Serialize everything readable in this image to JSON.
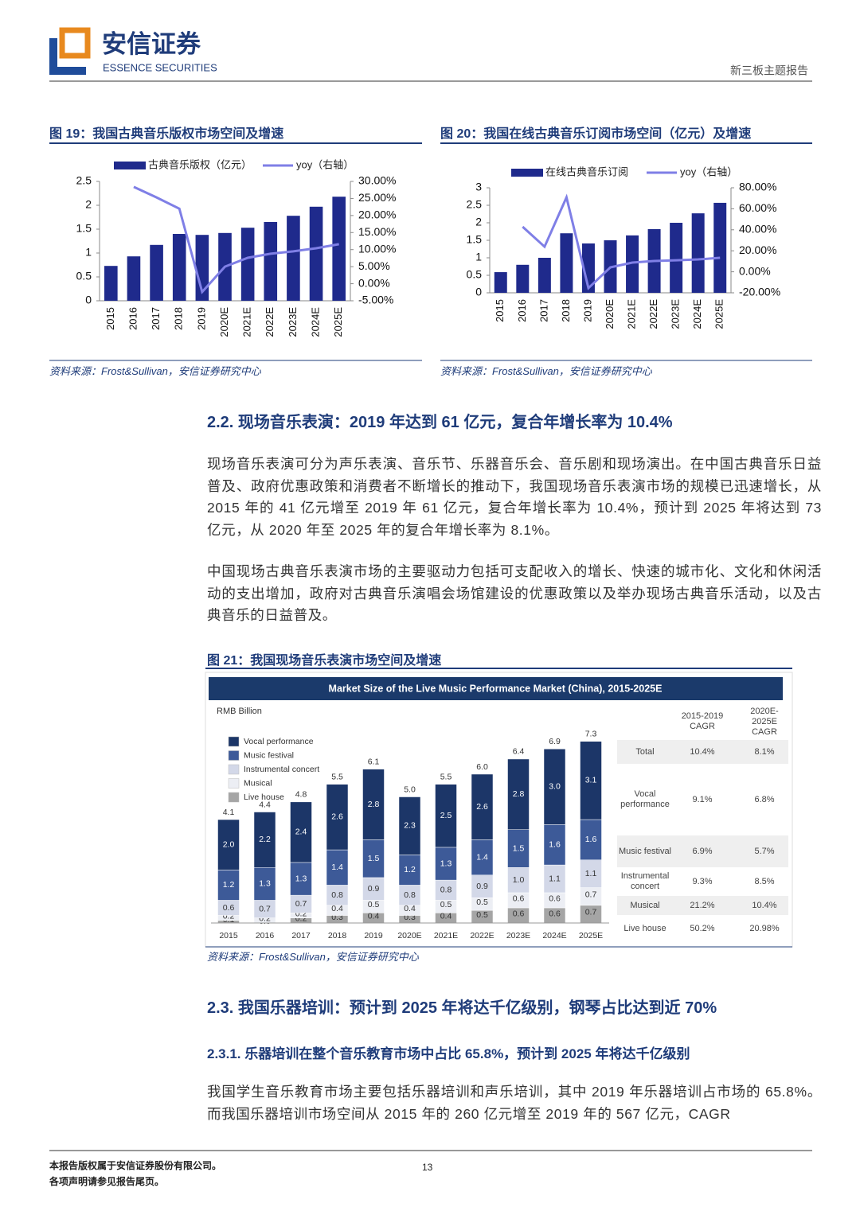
{
  "header": {
    "logo_cn": "安信证券",
    "logo_en": "ESSENCE SECURITIES",
    "report_type": "新三板主题报告"
  },
  "chart_data": [
    {
      "type": "bar-line",
      "caption": "图 19：我国古典音乐版权市场空间及增速",
      "categories": [
        "2015",
        "2016",
        "2017",
        "2018",
        "2019",
        "2020E",
        "2021E",
        "2022E",
        "2023E",
        "2024E",
        "2025E"
      ],
      "series": [
        {
          "name": "古典音乐版权（亿元）",
          "type": "bar",
          "color": "#1f2a8c",
          "values": [
            0.73,
            0.93,
            1.17,
            1.4,
            1.38,
            1.42,
            1.53,
            1.65,
            1.78,
            1.97,
            2.18
          ]
        },
        {
          "name": "yoy（右轴）",
          "type": "line",
          "axis": "y2",
          "color": "#7f7fe6",
          "values": [
            null,
            28.4,
            25.3,
            22.0,
            -2.4,
            5.0,
            7.6,
            8.8,
            9.5,
            10.4,
            11.6
          ]
        }
      ],
      "ylim": [
        0,
        2.5
      ],
      "yticks": [
        0,
        0.5,
        1,
        1.5,
        2,
        2.5
      ],
      "y2lim": [
        -5,
        30
      ],
      "y2ticks": [
        {
          "value": -5,
          "label": "-5.00%"
        },
        {
          "value": 0,
          "label": "0.00%"
        },
        {
          "value": 5,
          "label": "5.00%"
        },
        {
          "value": 10,
          "label": "10.00%"
        },
        {
          "value": 15,
          "label": "15.00%"
        },
        {
          "value": 20,
          "label": "20.00%"
        },
        {
          "value": 25,
          "label": "25.00%"
        },
        {
          "value": 30,
          "label": "30.00%"
        }
      ],
      "source": "资料来源：Frost&Sullivan，安信证券研究中心"
    },
    {
      "type": "bar-line",
      "caption": "图 20：我国在线古典音乐订阅市场空间（亿元）及增速",
      "categories": [
        "2015",
        "2016",
        "2017",
        "2018",
        "2019",
        "2020E",
        "2021E",
        "2022E",
        "2023E",
        "2024E",
        "2025E"
      ],
      "series": [
        {
          "name": "在线古典音乐订阅",
          "type": "bar",
          "color": "#1f2a8c",
          "values": [
            0.59,
            0.8,
            1.0,
            1.7,
            1.41,
            1.5,
            1.64,
            1.82,
            2.0,
            2.27,
            2.57
          ]
        },
        {
          "name": "yoy（右轴）",
          "type": "line",
          "axis": "y2",
          "color": "#7f7fe6",
          "values": [
            null,
            42.9,
            23.9,
            70.9,
            -15.5,
            4.2,
            8.8,
            10.3,
            11.0,
            11.8,
            13.3
          ]
        }
      ],
      "ylim": [
        0,
        3
      ],
      "yticks": [
        0,
        0.5,
        1,
        1.5,
        2,
        2.5,
        3
      ],
      "y2lim": [
        -20,
        80
      ],
      "y2ticks": [
        {
          "value": -20,
          "label": "-20.00%"
        },
        {
          "value": 0,
          "label": "0.00%"
        },
        {
          "value": 20,
          "label": "20.00%"
        },
        {
          "value": 40,
          "label": "40.00%"
        },
        {
          "value": 60,
          "label": "60.00%"
        },
        {
          "value": 80,
          "label": "80.00%"
        }
      ],
      "source": "资料来源：Frost&Sullivan，安信证券研究中心"
    },
    {
      "type": "stacked-bar",
      "caption": "图 21：我国现场音乐表演市场空间及增速",
      "title": "Market Size of the Live Music Performance Market (China), 2015-2025E",
      "unit": "RMB Billion",
      "categories": [
        "2015",
        "2016",
        "2017",
        "2018",
        "2019",
        "2020E",
        "2021E",
        "2022E",
        "2023E",
        "2024E",
        "2025E"
      ],
      "series": [
        {
          "name": "Live house",
          "color": "#a5a5a5",
          "values": [
            0.1,
            0.0,
            0.2,
            0.3,
            0.4,
            0.3,
            0.4,
            0.5,
            0.6,
            0.6,
            0.7
          ],
          "value_labels": [
            "0.1",
            "0.0",
            "0.2",
            "0.3",
            "0.4",
            "0.3",
            "0.4",
            "0.5",
            "0.6",
            "0.6",
            "0.7"
          ]
        },
        {
          "name": "Musical",
          "color": "#eceef4",
          "values": [
            0.2,
            0.2,
            0.2,
            0.4,
            0.5,
            0.4,
            0.5,
            0.5,
            0.6,
            0.6,
            0.7
          ],
          "value_labels": [
            "0.2",
            "0.2",
            "0.2",
            "0.4",
            "0.5",
            "0.4",
            "0.5",
            "0.5",
            "0.6",
            "0.6",
            "0.7"
          ]
        },
        {
          "name": "Instrumental concert",
          "color": "#d3d8e8",
          "values": [
            0.6,
            0.7,
            0.7,
            0.8,
            0.9,
            0.8,
            0.8,
            0.9,
            1.0,
            1.1,
            1.1
          ],
          "value_labels": [
            "0.6",
            "0.7",
            "0.7",
            "0.8",
            "0.9",
            "0.8",
            "0.8",
            "0.9",
            "1.0",
            "1.1",
            "1.1"
          ]
        },
        {
          "name": "Music festival",
          "color": "#3d5a98",
          "values": [
            1.2,
            1.3,
            1.3,
            1.4,
            1.5,
            1.2,
            1.3,
            1.4,
            1.5,
            1.6,
            1.6
          ],
          "value_labels": [
            "1.2",
            "1.3",
            "1.3",
            "1.4",
            "1.5",
            "1.2",
            "1.3",
            "1.4",
            "1.5",
            "1.6",
            "1.6"
          ]
        },
        {
          "name": "Vocal performance",
          "color": "#1c3668",
          "values": [
            2.0,
            2.2,
            2.4,
            2.6,
            2.8,
            2.3,
            2.5,
            2.6,
            2.8,
            3.0,
            3.1
          ],
          "value_labels": [
            "2.0",
            "2.2",
            "2.4",
            "2.6",
            "2.8",
            "2.3",
            "2.5",
            "2.6",
            "2.8",
            "3.0",
            "3.1"
          ]
        }
      ],
      "totals": {
        "values": [
          4.1,
          4.4,
          4.8,
          5.5,
          6.1,
          5.0,
          5.5,
          6.0,
          6.4,
          6.9,
          7.3
        ],
        "value_labels": [
          "4.1",
          "4.4",
          "4.8",
          "5.5",
          "6.1",
          "5.0",
          "5.5",
          "6.0",
          "6.4",
          "6.9",
          "7.3"
        ]
      },
      "cagr_table": {
        "headers": [
          "2015-2019 CAGR",
          "2020E-2025E CAGR"
        ],
        "rows": [
          [
            "Total",
            "10.4%",
            "8.1%"
          ],
          [
            "Vocal performance",
            "9.1%",
            "6.8%"
          ],
          [
            "Music festival",
            "6.9%",
            "5.7%"
          ],
          [
            "Instrumental concert",
            "9.3%",
            "8.5%"
          ],
          [
            "Musical",
            "21.2%",
            "10.4%"
          ],
          [
            "Live house",
            "50.2%",
            "20.98%"
          ]
        ]
      },
      "source": "资料来源：Frost&Sullivan，安信证券研究中心"
    }
  ],
  "sections": [
    {
      "heading": "2.2. 现场音乐表演：2019 年达到 61 亿元，复合年增长率为 10.4%",
      "paragraphs": [
        "现场音乐表演可分为声乐表演、音乐节、乐器音乐会、音乐剧和现场演出。在中国古典音乐日益普及、政府优惠政策和消费者不断增长的推动下，我国现场音乐表演市场的规模已迅速增长，从 2015 年的 41 亿元增至 2019 年 61 亿元，复合年增长率为 10.4%，预计到 2025 年将达到 73 亿元，从 2020 年至 2025 年的复合年增长率为 8.1%。",
        "中国现场古典音乐表演市场的主要驱动力包括可支配收入的增长、快速的城市化、文化和休闲活动的支出增加，政府对古典音乐演唱会场馆建设的优惠政策以及举办现场古典音乐活动，以及古典音乐的日益普及。"
      ]
    },
    {
      "heading": "2.3. 我国乐器培训：预计到 2025 年将达千亿级别，钢琴占比达到近 70%",
      "subheading": "2.3.1. 乐器培训在整个音乐教育市场中占比 65.8%，预计到 2025 年将达千亿级别",
      "paragraphs": [
        "我国学生音乐教育市场主要包括乐器培训和声乐培训，其中 2019 年乐器培训占市场的 65.8%。而我国乐器培训市场空间从 2015 年的 260 亿元增至 2019 年的 567 亿元，CAGR"
      ]
    }
  ],
  "footer": {
    "copyright": "本报告版权属于安信证券股份有限公司。",
    "notice": "各项声明请参见报告尾页。",
    "page": "13"
  }
}
